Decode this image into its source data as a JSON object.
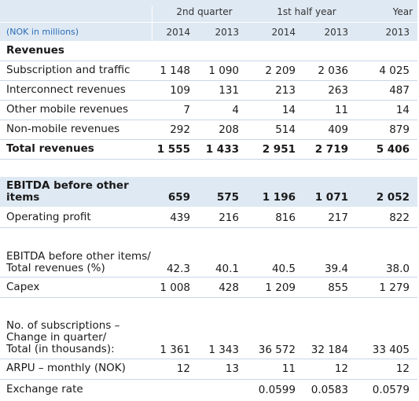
{
  "header": {
    "groups": [
      "2nd quarter",
      "1st half year",
      "Year"
    ],
    "unit": "(NOK in millions)",
    "years": [
      "2014",
      "2013",
      "2014",
      "2013",
      "2013"
    ]
  },
  "rows": [
    {
      "id": "revenues-heading",
      "label": "Revenues",
      "values": []
    },
    {
      "id": "subscription-traffic",
      "label": "Subscription and traffic",
      "values": [
        "1 148",
        "1 090",
        "2 209",
        "2 036",
        "4 025"
      ]
    },
    {
      "id": "interconnect",
      "label": "Interconnect revenues",
      "values": [
        "109",
        "131",
        "213",
        "263",
        "487"
      ]
    },
    {
      "id": "other-mobile",
      "label": "Other mobile revenues",
      "values": [
        "7",
        "4",
        "14",
        "11",
        "14"
      ]
    },
    {
      "id": "non-mobile",
      "label": "Non-mobile revenues",
      "values": [
        "292",
        "208",
        "514",
        "409",
        "879"
      ]
    },
    {
      "id": "total-revenues",
      "label": "Total revenues",
      "values": [
        "1 555",
        "1 433",
        "2 951",
        "2 719",
        "5 406"
      ]
    },
    {
      "id": "ebitda",
      "label": "EBITDA before other\nitems",
      "values": [
        "659",
        "575",
        "1 196",
        "1 071",
        "2 052"
      ]
    },
    {
      "id": "operating-profit",
      "label": "Operating profit",
      "values": [
        "439",
        "216",
        "816",
        "217",
        "822"
      ]
    },
    {
      "id": "ebitda-margin",
      "label": "EBITDA before other items/\nTotal revenues (%)",
      "values": [
        "42.3",
        "40.1",
        "40.5",
        "39.4",
        "38.0"
      ]
    },
    {
      "id": "capex",
      "label": "Capex",
      "values": [
        "1 008",
        "428",
        "1 209",
        "855",
        "1 279"
      ]
    },
    {
      "id": "subscriptions",
      "label": "No. of subscriptions –\nChange in quarter/\nTotal (in thousands):",
      "values": [
        "1 361",
        "1 343",
        "36 572",
        "32 184",
        "33 405"
      ]
    },
    {
      "id": "arpu",
      "label": "ARPU – monthly (NOK)",
      "values": [
        "12",
        "13",
        "11",
        "12",
        "12"
      ]
    },
    {
      "id": "exchange-rate",
      "label": "Exchange rate",
      "values": [
        "",
        "",
        "0.0599",
        "0.0583",
        "0.0579"
      ]
    }
  ]
}
